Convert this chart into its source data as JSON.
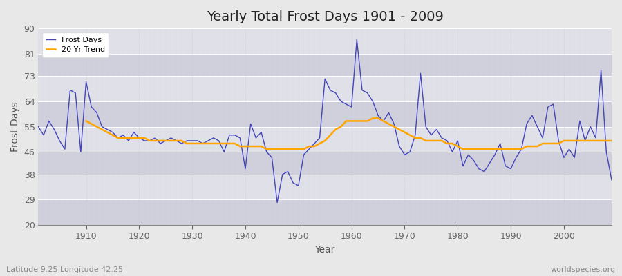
{
  "title": "Yearly Total Frost Days 1901 - 2009",
  "xlabel": "Year",
  "ylabel": "Frost Days",
  "footnote_left": "Latitude 9.25 Longitude 42.25",
  "footnote_right": "worldspecies.org",
  "legend": [
    "Frost Days",
    "20 Yr Trend"
  ],
  "line_color": "#4444bb",
  "trend_color": "#ffa500",
  "bg_color": "#e8e8e8",
  "plot_bg_light": "#e0e0e8",
  "plot_bg_dark": "#d0d0dc",
  "grid_color": "#ffffff",
  "ylim": [
    20,
    90
  ],
  "yticks": [
    20,
    29,
    38,
    46,
    55,
    64,
    73,
    81,
    90
  ],
  "xlim": [
    1901,
    2009
  ],
  "xticks": [
    1910,
    1920,
    1930,
    1940,
    1950,
    1960,
    1970,
    1980,
    1990,
    2000
  ],
  "years": [
    1901,
    1902,
    1903,
    1904,
    1905,
    1906,
    1907,
    1908,
    1909,
    1910,
    1911,
    1912,
    1913,
    1914,
    1915,
    1916,
    1917,
    1918,
    1919,
    1920,
    1921,
    1922,
    1923,
    1924,
    1925,
    1926,
    1927,
    1928,
    1929,
    1930,
    1931,
    1932,
    1933,
    1934,
    1935,
    1936,
    1937,
    1938,
    1939,
    1940,
    1941,
    1942,
    1943,
    1944,
    1945,
    1946,
    1947,
    1948,
    1949,
    1950,
    1951,
    1952,
    1953,
    1954,
    1955,
    1956,
    1957,
    1958,
    1959,
    1960,
    1961,
    1962,
    1963,
    1964,
    1965,
    1966,
    1967,
    1968,
    1969,
    1970,
    1971,
    1972,
    1973,
    1974,
    1975,
    1976,
    1977,
    1978,
    1979,
    1980,
    1981,
    1982,
    1983,
    1984,
    1985,
    1986,
    1987,
    1988,
    1989,
    1990,
    1991,
    1992,
    1993,
    1994,
    1995,
    1996,
    1997,
    1998,
    1999,
    2000,
    2001,
    2002,
    2003,
    2004,
    2005,
    2006,
    2007,
    2008,
    2009
  ],
  "frost_days": [
    55,
    52,
    57,
    54,
    50,
    47,
    68,
    67,
    46,
    71,
    62,
    60,
    55,
    54,
    53,
    51,
    52,
    50,
    53,
    51,
    50,
    50,
    51,
    49,
    50,
    51,
    50,
    49,
    50,
    50,
    50,
    49,
    50,
    51,
    50,
    46,
    52,
    52,
    51,
    40,
    56,
    51,
    53,
    46,
    44,
    28,
    38,
    39,
    35,
    34,
    45,
    47,
    49,
    51,
    72,
    68,
    67,
    64,
    63,
    62,
    86,
    68,
    67,
    64,
    59,
    57,
    60,
    56,
    48,
    45,
    46,
    52,
    74,
    55,
    52,
    54,
    51,
    50,
    46,
    50,
    41,
    45,
    43,
    40,
    39,
    42,
    45,
    49,
    41,
    40,
    44,
    47,
    56,
    59,
    55,
    51,
    62,
    63,
    50,
    44,
    47,
    44,
    57,
    50,
    55,
    51,
    75,
    46,
    36
  ],
  "trend_years": [
    1910,
    1911,
    1912,
    1913,
    1914,
    1915,
    1916,
    1917,
    1918,
    1919,
    1920,
    1921,
    1922,
    1923,
    1924,
    1925,
    1926,
    1927,
    1928,
    1929,
    1930,
    1931,
    1932,
    1933,
    1934,
    1935,
    1936,
    1937,
    1938,
    1939,
    1940,
    1941,
    1942,
    1943,
    1944,
    1945,
    1946,
    1947,
    1948,
    1949,
    1950,
    1951,
    1952,
    1953,
    1954,
    1955,
    1956,
    1957,
    1958,
    1959,
    1960,
    1961,
    1962,
    1963,
    1964,
    1965,
    1966,
    1967,
    1968,
    1969,
    1970,
    1971,
    1972,
    1973,
    1974,
    1975,
    1976,
    1977,
    1978,
    1979,
    1980,
    1981,
    1982,
    1983,
    1984,
    1985,
    1986,
    1987,
    1988,
    1989,
    1990,
    1991,
    1992,
    1993,
    1994,
    1995,
    1996,
    1997,
    1998,
    1999,
    2000,
    2001,
    2002,
    2003,
    2004,
    2005,
    2006,
    2007,
    2008,
    2009
  ],
  "trend_values": [
    57,
    56,
    55,
    54,
    53,
    52,
    51,
    51,
    51,
    51,
    51,
    51,
    50,
    50,
    50,
    50,
    50,
    50,
    50,
    49,
    49,
    49,
    49,
    49,
    49,
    49,
    49,
    49,
    49,
    48,
    48,
    48,
    48,
    48,
    47,
    47,
    47,
    47,
    47,
    47,
    47,
    47,
    48,
    48,
    49,
    50,
    52,
    54,
    55,
    57,
    57,
    57,
    57,
    57,
    58,
    58,
    57,
    56,
    55,
    54,
    53,
    52,
    51,
    51,
    50,
    50,
    50,
    50,
    49,
    49,
    48,
    47,
    47,
    47,
    47,
    47,
    47,
    47,
    47,
    47,
    47,
    47,
    47,
    48,
    48,
    48,
    49,
    49,
    49,
    49,
    50,
    50,
    50,
    50,
    50,
    50,
    50,
    50,
    50,
    50
  ]
}
